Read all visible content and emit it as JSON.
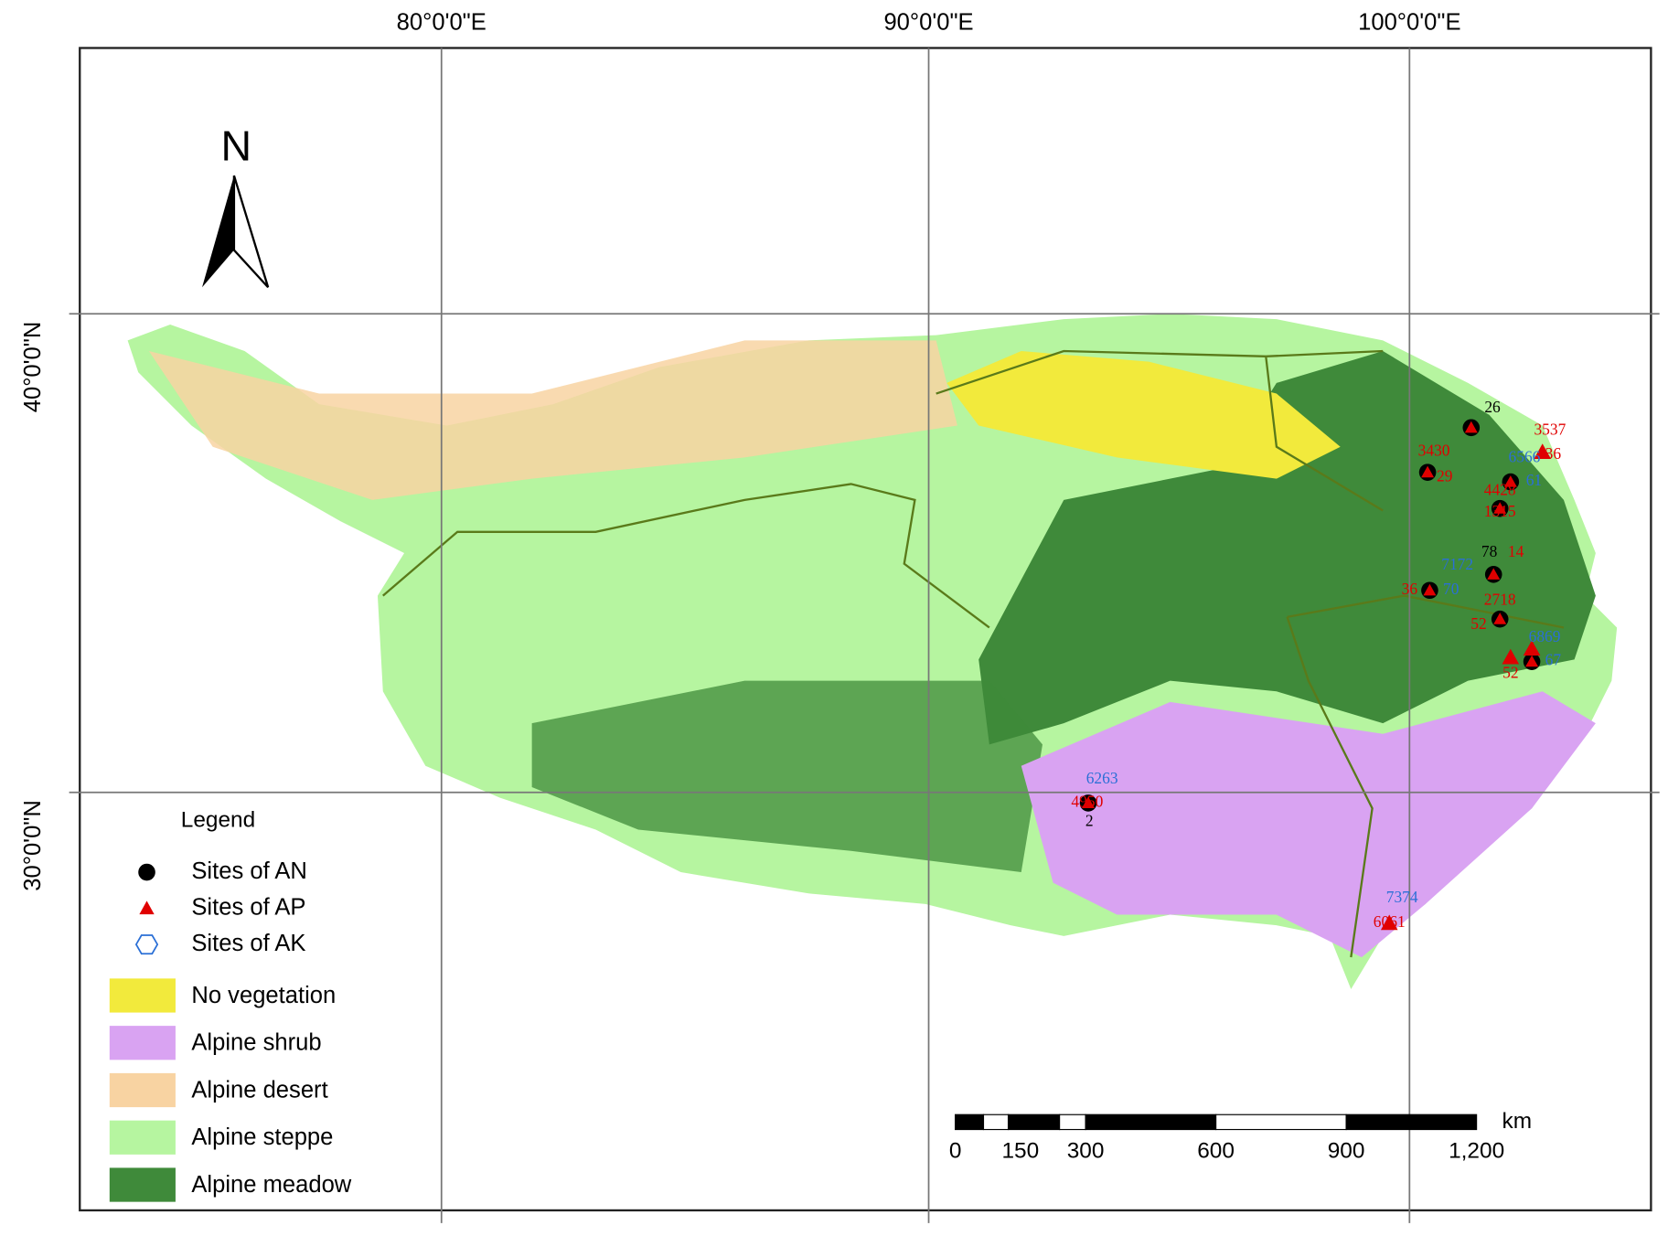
{
  "map": {
    "graticule": {
      "lon_labels": [
        "80°0'0\"E",
        "90°0'0\"E",
        "100°0'0\"E"
      ],
      "lat_labels": [
        "40°0'0\"N",
        "30°0'0\"N"
      ]
    },
    "north": "N",
    "legend": {
      "title": "Legend",
      "sites": [
        {
          "label": "Sites of AN",
          "color": "#000000"
        },
        {
          "label": "Sites of AP",
          "color": "#e00000"
        },
        {
          "label": "Sites of AK",
          "color": "#2a6fd6"
        }
      ],
      "vegetation": [
        {
          "label": "No vegetation",
          "color": "#f2ea3c"
        },
        {
          "label": "Alpine shrub",
          "color": "#d9a3f2"
        },
        {
          "label": "Alpine desert",
          "color": "#f8d3a2"
        },
        {
          "label": "Alpine steppe",
          "color": "#b6f5a0"
        },
        {
          "label": "Alpine meadow",
          "color": "#3f8a3a"
        }
      ]
    },
    "scale_bar": {
      "unit": "km",
      "ticks": [
        0,
        150,
        300,
        600,
        900,
        {
          "value": 1200,
          "label": "1,200"
        }
      ],
      "max": 1200
    },
    "site_labels": [
      "26",
      "3537",
      "36",
      "3430",
      "29",
      "6566",
      "61",
      "4428",
      "1315",
      "78",
      "14",
      "7172",
      "70",
      "36",
      "2718",
      "52",
      "6869",
      "67",
      "52",
      "6263",
      "4950",
      "2",
      "7374",
      "6061"
    ]
  }
}
